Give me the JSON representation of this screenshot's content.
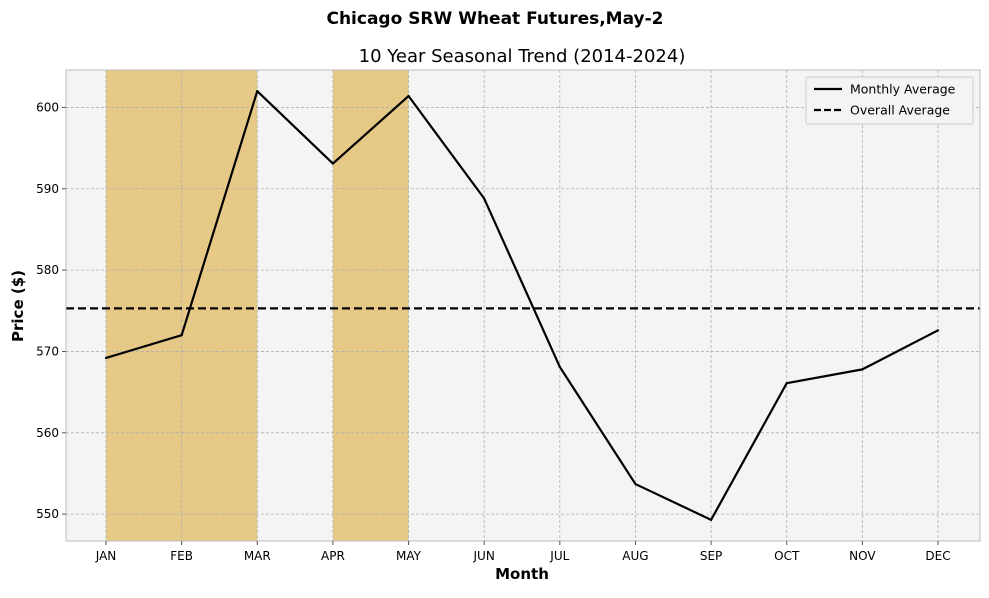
{
  "suptitle": "Chicago SRW Wheat Futures,May-2",
  "chart_data": {
    "type": "line",
    "title": "10 Year Seasonal Trend (2014-2024)",
    "xlabel": "Month",
    "ylabel": "Price ($)",
    "categories": [
      "JAN",
      "FEB",
      "MAR",
      "APR",
      "MAY",
      "JUN",
      "JUL",
      "AUG",
      "SEP",
      "OCT",
      "NOV",
      "DEC"
    ],
    "series": [
      {
        "name": "Monthly Average",
        "style": "solid",
        "color": "#000000",
        "values": [
          569.2,
          572.0,
          602.0,
          593.1,
          601.4,
          588.8,
          568.1,
          553.7,
          549.3,
          566.1,
          567.8,
          572.6
        ]
      }
    ],
    "reference_lines": [
      {
        "name": "Overall Average",
        "style": "dashed",
        "color": "#000000",
        "value": 575.3
      }
    ],
    "highlight_ranges": [
      {
        "from": "JAN",
        "to": "MAR",
        "color": "#e6c987"
      },
      {
        "from": "APR",
        "to": "MAY",
        "color": "#e6c987"
      }
    ],
    "ylim": [
      546.7,
      604.6
    ],
    "yticks": [
      550,
      560,
      570,
      580,
      590,
      600
    ],
    "grid": true,
    "legend_position": "top-right",
    "background_color": "#f4f4f4"
  }
}
